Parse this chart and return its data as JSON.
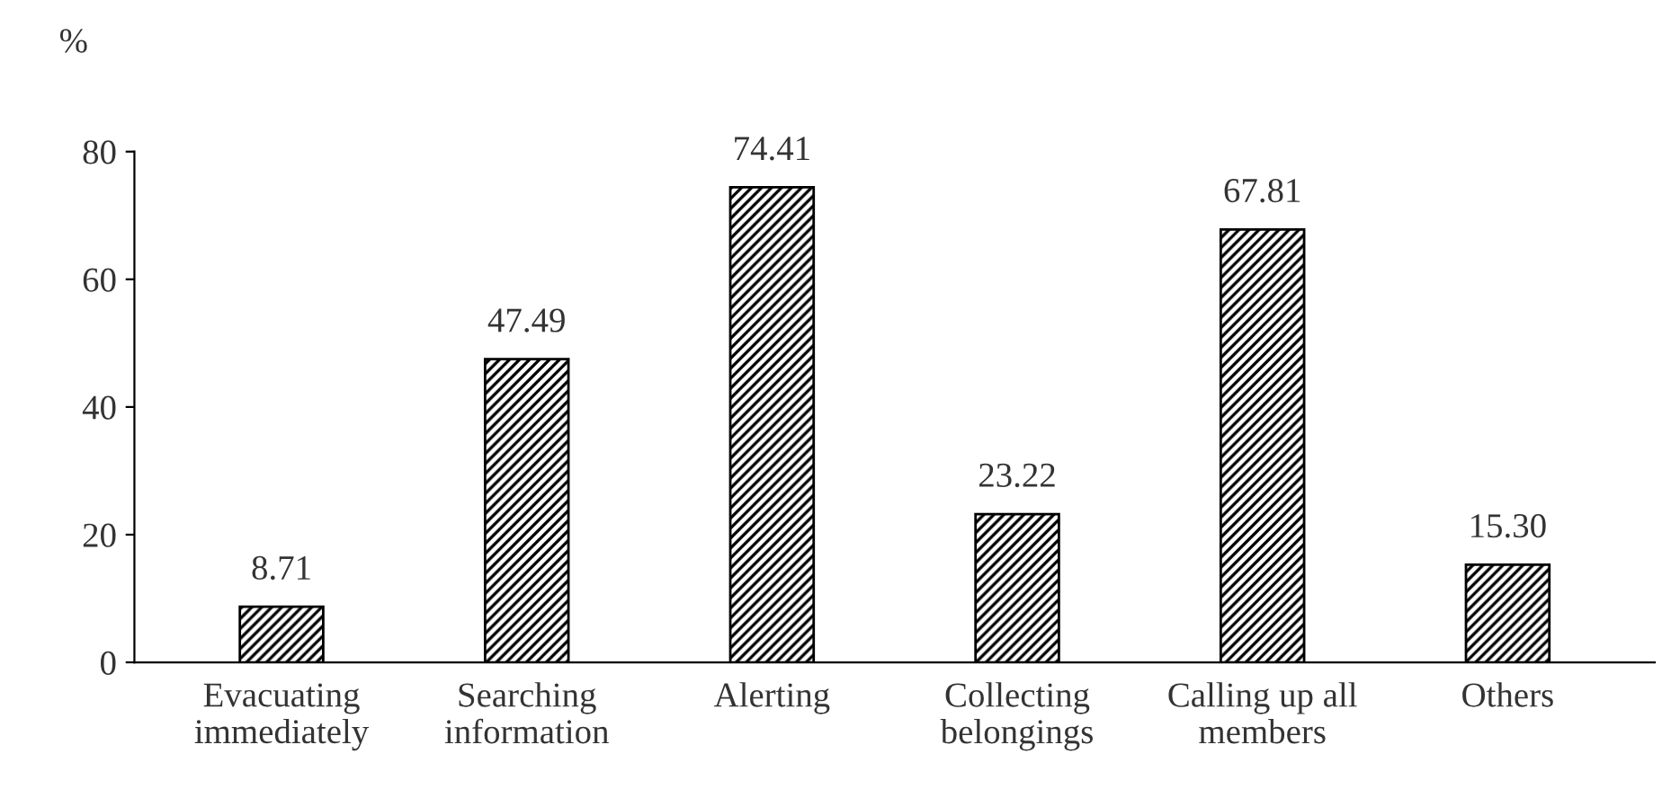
{
  "chart_data": {
    "type": "bar",
    "ylabel": "%",
    "categories": [
      "Evacuating\nimmediately",
      "Searching\ninformation",
      "Alerting",
      "Collecting\nbelongings",
      "Calling up all\nmembers",
      "Others"
    ],
    "values": [
      8.71,
      47.49,
      74.41,
      23.22,
      67.81,
      15.3
    ],
    "value_labels": [
      "8.71",
      "47.49",
      "74.41",
      "23.22",
      "67.81",
      "15.30"
    ],
    "color": "#000000",
    "ylim": [
      0,
      80
    ],
    "yticks": [
      0,
      20,
      40,
      60,
      80
    ],
    "grid": false,
    "legend": false
  }
}
